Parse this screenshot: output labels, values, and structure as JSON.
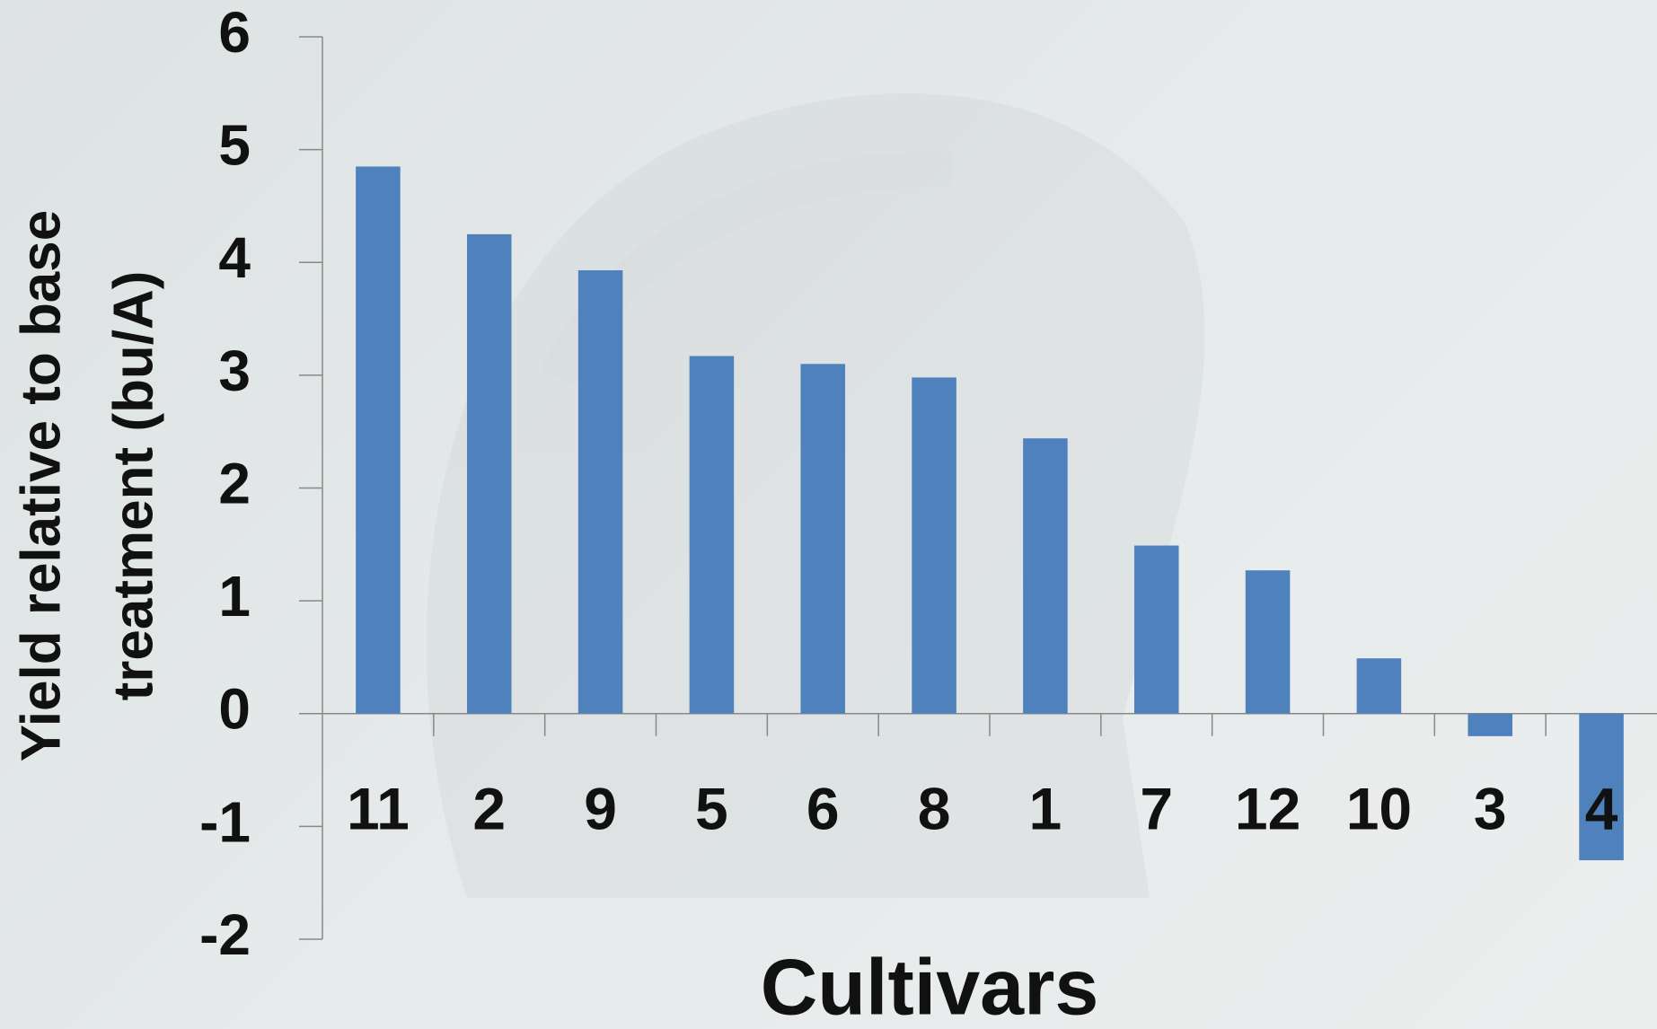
{
  "chart_data": {
    "type": "bar",
    "x_label": "Cultivars",
    "y_label": [
      "Yield relative to base",
      "treatment (bu/A)"
    ],
    "categories": [
      "11",
      "2",
      "9",
      "5",
      "6",
      "8",
      "1",
      "7",
      "12",
      "10",
      "3",
      "4"
    ],
    "values": [
      4.85,
      4.25,
      3.93,
      3.17,
      3.1,
      2.98,
      2.44,
      1.49,
      1.27,
      0.49,
      -0.2,
      -1.3
    ],
    "color": "#4f81bd",
    "ylim": [
      -2,
      6
    ],
    "yticks": [
      -2,
      -1,
      0,
      1,
      2,
      3,
      4,
      5,
      6
    ],
    "grid": false
  }
}
